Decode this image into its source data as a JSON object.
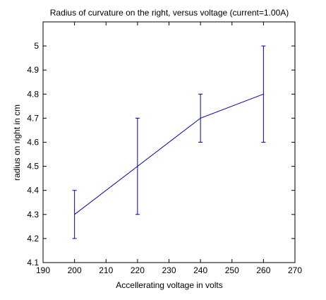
{
  "chart_data": {
    "type": "line",
    "title": "Radius of curvature on the right, versus voltage (current=1.00A)",
    "xlabel": "Accellerating voltage in volts",
    "ylabel": "radius on right in cm",
    "xlim": [
      190,
      270
    ],
    "ylim": [
      4.1,
      5.1
    ],
    "x_ticks": [
      "190",
      "200",
      "210",
      "220",
      "230",
      "240",
      "250",
      "260",
      "270"
    ],
    "y_ticks": [
      "4.1",
      "4.2",
      "4.3",
      "4.4",
      "4.5",
      "4.6",
      "4.7",
      "4.8",
      "4.9",
      "5"
    ],
    "grid": false,
    "series": [
      {
        "x": [
          200,
          220,
          240,
          260
        ],
        "y": [
          4.3,
          4.5,
          4.7,
          4.8
        ],
        "error": [
          0.1,
          0.2,
          0.1,
          0.2
        ],
        "color": "#0000aa"
      }
    ]
  }
}
